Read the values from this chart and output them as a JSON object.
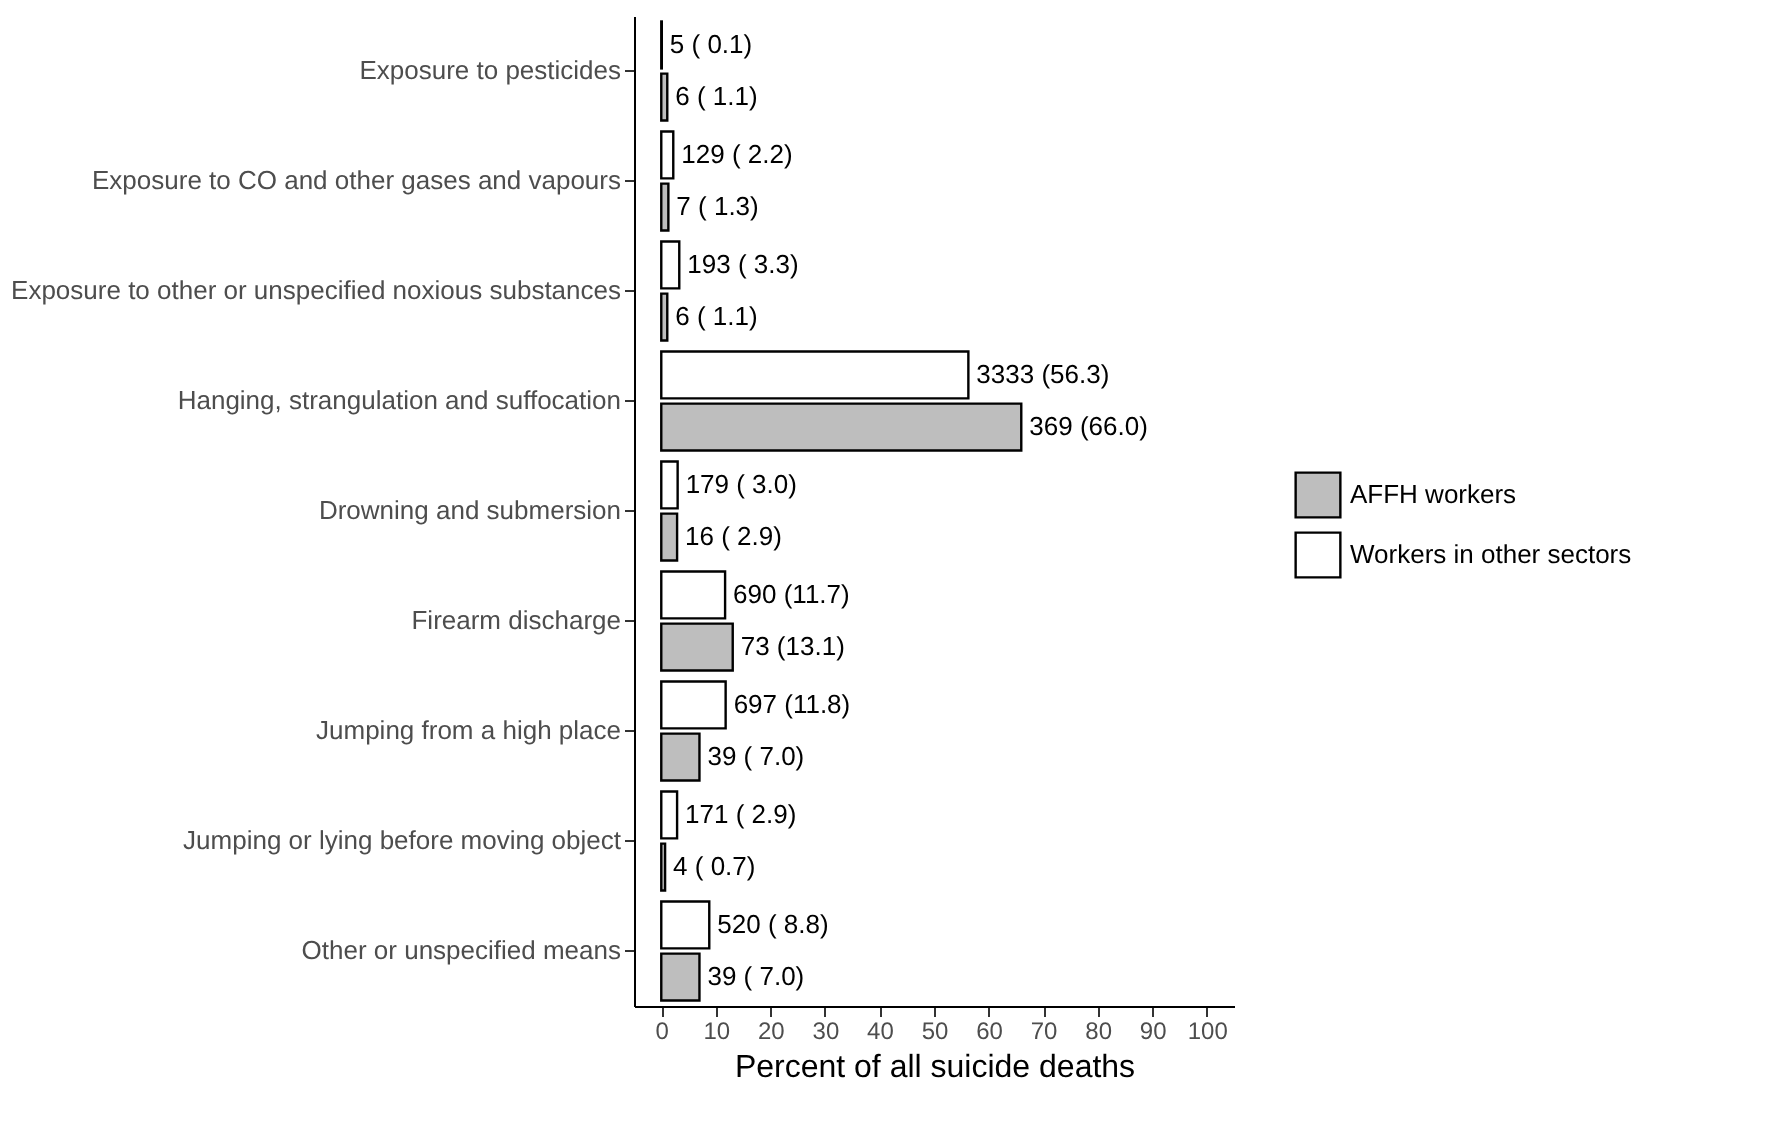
{
  "chart_data": {
    "type": "bar",
    "orientation": "horizontal",
    "xlabel": "Percent of all suicide deaths",
    "categories": [
      "Exposure to pesticides",
      "Exposure to CO and other gases and vapours",
      "Exposure to other or unspecified noxious substances",
      "Hanging, strangulation and suffocation",
      "Drowning and submersion",
      "Firearm discharge",
      "Jumping from a high place",
      "Jumping or lying before moving object",
      "Other or unspecified means"
    ],
    "series": [
      {
        "name": "AFFH workers",
        "color": "#bebebe",
        "values": [
          1.1,
          1.3,
          1.1,
          66.0,
          2.9,
          13.1,
          7.0,
          0.7,
          7.0
        ],
        "value_labels": [
          "6 ( 1.1)",
          "7 ( 1.3)",
          "6 ( 1.1)",
          "369 (66.0)",
          "16 ( 2.9)",
          "73 (13.1)",
          "39 ( 7.0)",
          "4 ( 0.7)",
          "39 ( 7.0)"
        ]
      },
      {
        "name": "Workers in other sectors",
        "color": "#ffffff",
        "values": [
          0.1,
          2.2,
          3.3,
          56.3,
          3.0,
          11.7,
          11.8,
          2.9,
          8.8
        ],
        "value_labels": [
          "5 ( 0.1)",
          "129 ( 2.2)",
          "193 ( 3.3)",
          "3333 (56.3)",
          "179 ( 3.0)",
          "690 (11.7)",
          "697 (11.8)",
          "171 ( 2.9)",
          "520 ( 8.8)"
        ]
      }
    ],
    "xlim": [
      -5,
      105
    ],
    "xticks": [
      0,
      10,
      20,
      30,
      40,
      50,
      60,
      70,
      80,
      90,
      100
    ],
    "grid": false,
    "legend": "right"
  }
}
